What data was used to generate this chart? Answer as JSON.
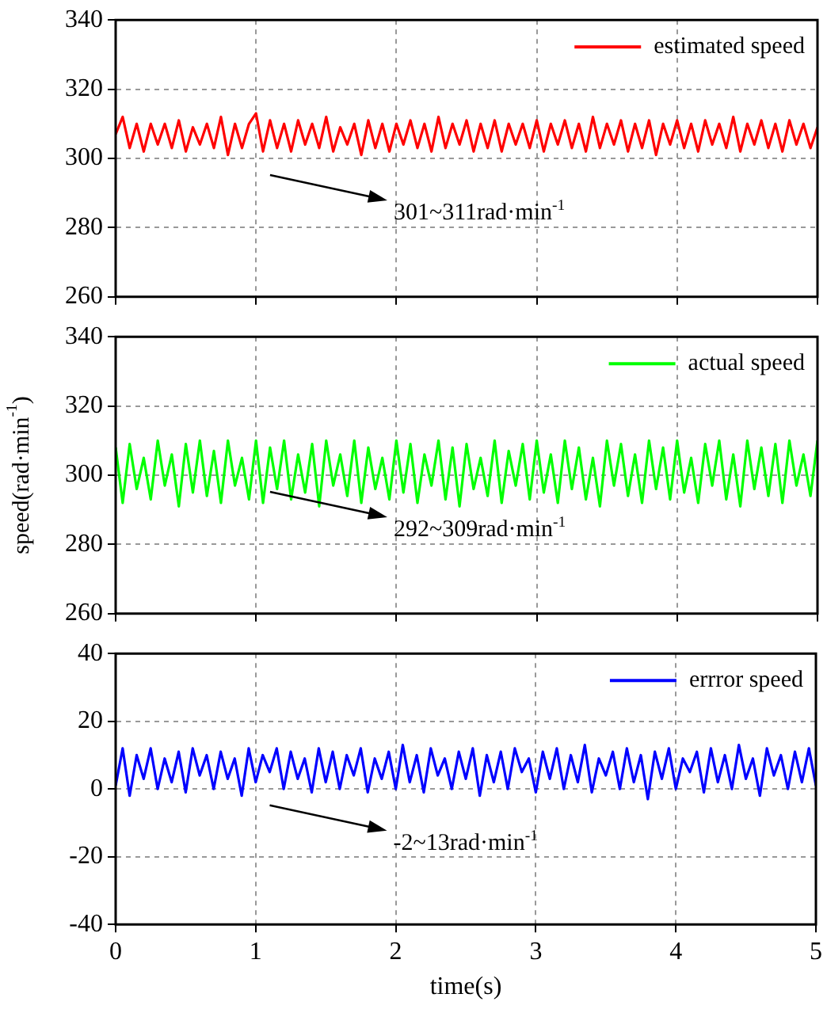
{
  "chart_data": [
    {
      "type": "line",
      "x": [
        0,
        0.05,
        0.1,
        0.15,
        0.2,
        0.25,
        0.3,
        0.35,
        0.4,
        0.45,
        0.5,
        0.55,
        0.6,
        0.65,
        0.7,
        0.75,
        0.8,
        0.85,
        0.9,
        0.95,
        1,
        1.05,
        1.1,
        1.15,
        1.2,
        1.25,
        1.3,
        1.35,
        1.4,
        1.45,
        1.5,
        1.55,
        1.6,
        1.65,
        1.7,
        1.75,
        1.8,
        1.85,
        1.9,
        1.95,
        2,
        2.05,
        2.1,
        2.15,
        2.2,
        2.25,
        2.3,
        2.35,
        2.4,
        2.45,
        2.5,
        2.55,
        2.6,
        2.65,
        2.7,
        2.75,
        2.8,
        2.85,
        2.9,
        2.95,
        3,
        3.05,
        3.1,
        3.15,
        3.2,
        3.25,
        3.3,
        3.35,
        3.4,
        3.45,
        3.5,
        3.55,
        3.6,
        3.65,
        3.7,
        3.75,
        3.8,
        3.85,
        3.9,
        3.95,
        4,
        4.05,
        4.1,
        4.15,
        4.2,
        4.25,
        4.3,
        4.35,
        4.4,
        4.45,
        4.5,
        4.55,
        4.6,
        4.65,
        4.7,
        4.75,
        4.8,
        4.85,
        4.9,
        4.95,
        5
      ],
      "series": [
        {
          "name": "estimated speed",
          "color": "#ff0000",
          "values": [
            307,
            312,
            303,
            310,
            302,
            310,
            304,
            310,
            303,
            311,
            302,
            309,
            304,
            310,
            303,
            312,
            301,
            310,
            303,
            310,
            313,
            302,
            311,
            303,
            310,
            302,
            311,
            304,
            310,
            303,
            312,
            302,
            309,
            304,
            310,
            301,
            311,
            303,
            310,
            302,
            310,
            304,
            311,
            303,
            310,
            302,
            312,
            303,
            310,
            304,
            311,
            302,
            310,
            303,
            311,
            302,
            310,
            304,
            310,
            303,
            311,
            302,
            310,
            304,
            311,
            303,
            310,
            302,
            312,
            303,
            310,
            304,
            311,
            302,
            310,
            303,
            311,
            301,
            310,
            304,
            311,
            303,
            310,
            302,
            311,
            304,
            310,
            303,
            312,
            302,
            310,
            304,
            311,
            303,
            310,
            302,
            311,
            304,
            310,
            303,
            309
          ]
        }
      ],
      "xlim": [
        0,
        5
      ],
      "xticks": [
        0,
        1,
        2,
        3,
        4,
        5
      ],
      "ylim": [
        260,
        340
      ],
      "yticks": [
        260,
        280,
        300,
        320,
        340
      ],
      "tick_labels": "y",
      "grid": true,
      "legend": "top right",
      "annotations": [
        "301~311rad·min$^{-1}$"
      ]
    },
    {
      "type": "line",
      "x": [
        0,
        0.05,
        0.1,
        0.15,
        0.2,
        0.25,
        0.3,
        0.35,
        0.4,
        0.45,
        0.5,
        0.55,
        0.6,
        0.65,
        0.7,
        0.75,
        0.8,
        0.85,
        0.9,
        0.95,
        1,
        1.05,
        1.1,
        1.15,
        1.2,
        1.25,
        1.3,
        1.35,
        1.4,
        1.45,
        1.5,
        1.55,
        1.6,
        1.65,
        1.7,
        1.75,
        1.8,
        1.85,
        1.9,
        1.95,
        2,
        2.05,
        2.1,
        2.15,
        2.2,
        2.25,
        2.3,
        2.35,
        2.4,
        2.45,
        2.5,
        2.55,
        2.6,
        2.65,
        2.7,
        2.75,
        2.8,
        2.85,
        2.9,
        2.95,
        3,
        3.05,
        3.1,
        3.15,
        3.2,
        3.25,
        3.3,
        3.35,
        3.4,
        3.45,
        3.5,
        3.55,
        3.6,
        3.65,
        3.7,
        3.75,
        3.8,
        3.85,
        3.9,
        3.95,
        4,
        4.05,
        4.1,
        4.15,
        4.2,
        4.25,
        4.3,
        4.35,
        4.4,
        4.45,
        4.5,
        4.55,
        4.6,
        4.65,
        4.7,
        4.75,
        4.8,
        4.85,
        4.9,
        4.95,
        5
      ],
      "series": [
        {
          "name": "actual speed",
          "color": "#00ff00",
          "values": [
            308,
            292,
            309,
            296,
            305,
            293,
            310,
            297,
            306,
            291,
            309,
            295,
            310,
            294,
            307,
            292,
            310,
            297,
            305,
            293,
            310,
            292,
            308,
            296,
            310,
            293,
            306,
            295,
            309,
            291,
            310,
            297,
            306,
            294,
            310,
            292,
            308,
            296,
            305,
            293,
            310,
            295,
            309,
            292,
            306,
            297,
            310,
            293,
            308,
            291,
            309,
            296,
            305,
            294,
            310,
            292,
            307,
            297,
            309,
            293,
            310,
            295,
            306,
            292,
            310,
            296,
            308,
            293,
            305,
            291,
            310,
            297,
            309,
            294,
            306,
            292,
            310,
            296,
            308,
            293,
            310,
            295,
            305,
            292,
            309,
            297,
            310,
            293,
            306,
            291,
            310,
            296,
            308,
            294,
            309,
            292,
            310,
            297,
            306,
            294,
            310
          ]
        }
      ],
      "ylabel": "speed(rad·min$^{-1}$)",
      "xlim": [
        0,
        5
      ],
      "xticks": [
        0,
        1,
        2,
        3,
        4,
        5
      ],
      "ylim": [
        260,
        340
      ],
      "yticks": [
        260,
        280,
        300,
        320,
        340
      ],
      "tick_labels": "y",
      "grid": true,
      "legend": "top right",
      "annotations": [
        "292~309rad·min$^{-1}$"
      ]
    },
    {
      "type": "line",
      "x": [
        0,
        0.05,
        0.1,
        0.15,
        0.2,
        0.25,
        0.3,
        0.35,
        0.4,
        0.45,
        0.5,
        0.55,
        0.6,
        0.65,
        0.7,
        0.75,
        0.8,
        0.85,
        0.9,
        0.95,
        1,
        1.05,
        1.1,
        1.15,
        1.2,
        1.25,
        1.3,
        1.35,
        1.4,
        1.45,
        1.5,
        1.55,
        1.6,
        1.65,
        1.7,
        1.75,
        1.8,
        1.85,
        1.9,
        1.95,
        2,
        2.05,
        2.1,
        2.15,
        2.2,
        2.25,
        2.3,
        2.35,
        2.4,
        2.45,
        2.5,
        2.55,
        2.6,
        2.65,
        2.7,
        2.75,
        2.8,
        2.85,
        2.9,
        2.95,
        3,
        3.05,
        3.1,
        3.15,
        3.2,
        3.25,
        3.3,
        3.35,
        3.4,
        3.45,
        3.5,
        3.55,
        3.6,
        3.65,
        3.7,
        3.75,
        3.8,
        3.85,
        3.9,
        3.95,
        4,
        4.05,
        4.1,
        4.15,
        4.2,
        4.25,
        4.3,
        4.35,
        4.4,
        4.45,
        4.5,
        4.55,
        4.6,
        4.65,
        4.7,
        4.75,
        4.8,
        4.85,
        4.9,
        4.95,
        5
      ],
      "series": [
        {
          "name": "errror speed",
          "color": "#0000ff",
          "values": [
            1,
            12,
            -2,
            10,
            3,
            12,
            0,
            9,
            2,
            11,
            -1,
            12,
            4,
            10,
            0,
            11,
            3,
            9,
            -2,
            12,
            2,
            10,
            5,
            12,
            0,
            11,
            3,
            9,
            -1,
            12,
            2,
            11,
            0,
            10,
            4,
            12,
            -1,
            9,
            3,
            11,
            0,
            13,
            2,
            10,
            -1,
            12,
            4,
            9,
            0,
            11,
            3,
            12,
            -2,
            10,
            2,
            11,
            0,
            12,
            5,
            9,
            -1,
            11,
            3,
            12,
            0,
            10,
            2,
            13,
            -1,
            9,
            4,
            11,
            0,
            12,
            2,
            10,
            -3,
            11,
            3,
            12,
            0,
            9,
            5,
            11,
            -1,
            12,
            2,
            10,
            0,
            13,
            3,
            9,
            -2,
            12,
            4,
            10,
            0,
            11,
            2,
            12,
            1
          ]
        }
      ],
      "xlabel": "time(s)",
      "xlim": [
        0,
        5
      ],
      "xticks": [
        0,
        1,
        2,
        3,
        4,
        5
      ],
      "ylim": [
        -40,
        40
      ],
      "yticks": [
        -40,
        -20,
        0,
        20,
        40
      ],
      "grid": true,
      "legend": "top right",
      "annotations": [
        "-2~13rad·min$^{-1}$"
      ]
    }
  ]
}
